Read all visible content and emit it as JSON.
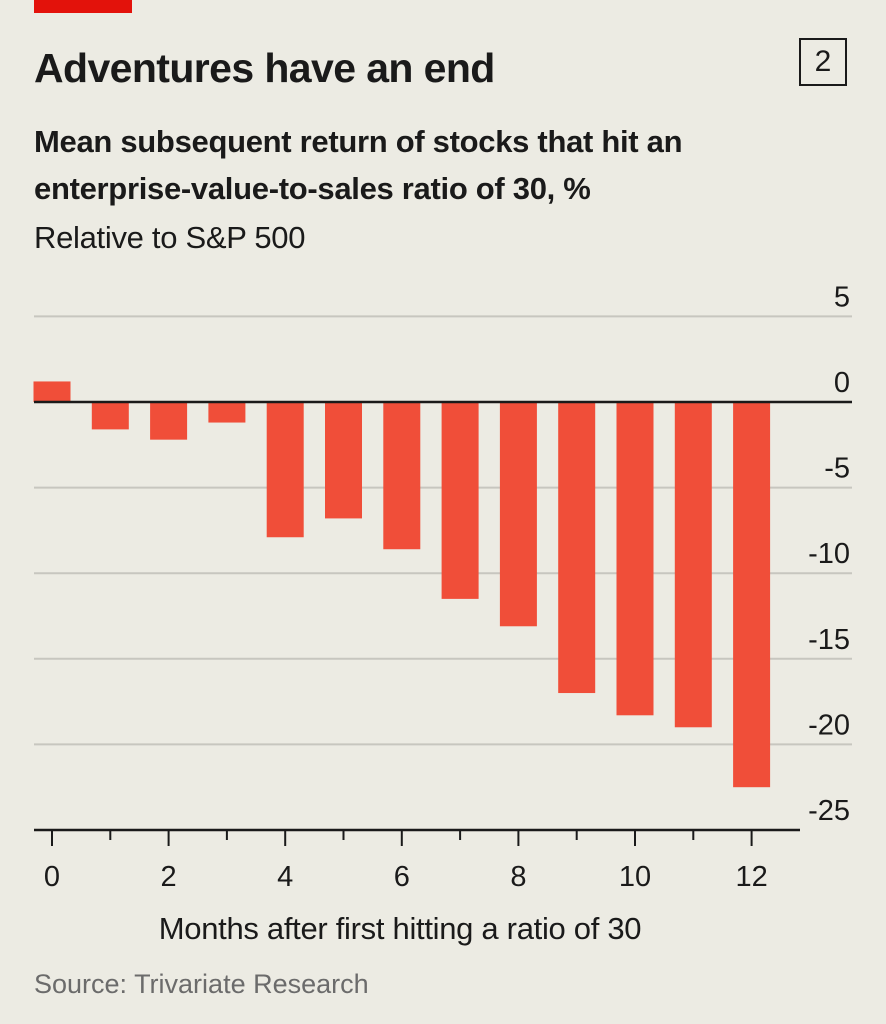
{
  "header": {
    "chart_number": "2"
  },
  "chart_data": {
    "type": "bar",
    "title": "Adventures have an end",
    "subtitle": "Mean subsequent return of stocks that hit an enterprise-value-to-sales ratio of 30, %",
    "subtitle_2": "Relative to S&P 500",
    "xlabel": "Months after first hitting a ratio of 30",
    "ylabel": "",
    "x": [
      0,
      1,
      2,
      3,
      4,
      5,
      6,
      7,
      8,
      9,
      10,
      11,
      12
    ],
    "values": [
      1.2,
      -1.6,
      -2.2,
      -1.2,
      -7.9,
      -6.8,
      -8.6,
      -11.5,
      -13.1,
      -17.0,
      -18.3,
      -19.0,
      -22.5
    ],
    "ylim": [
      -25,
      5
    ],
    "yticks": [
      5,
      0,
      -5,
      -10,
      -15,
      -20,
      -25
    ],
    "xticks_labeled": [
      0,
      2,
      4,
      6,
      8,
      10,
      12
    ],
    "grid": true,
    "y_axis_side": "right",
    "bar_color": "#f04e39"
  },
  "source": "Source: Trivariate Research"
}
